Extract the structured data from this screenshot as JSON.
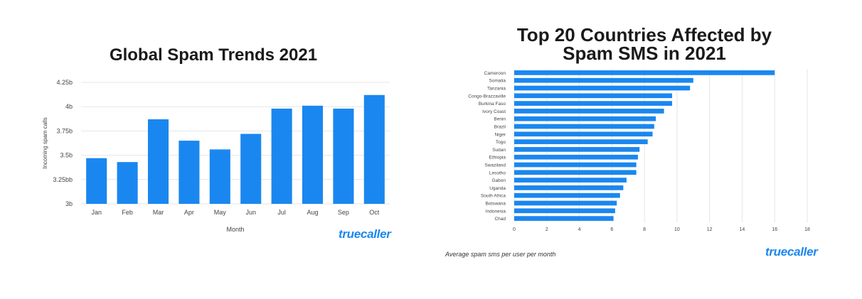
{
  "colors": {
    "bar": "#1a87f0",
    "grid": "#e6e6e6",
    "brand": "#1a87f0",
    "title": "#1a1a1a"
  },
  "left_chart": {
    "title": "Global Spam Trends 2021",
    "brand": "truecaller"
  },
  "right_chart": {
    "title_line1": "Top 20 Countries Affected by",
    "title_line2": "Spam SMS in 2021",
    "note": "Average spam sms per user per month",
    "brand": "truecaller"
  },
  "chart_data": [
    {
      "type": "bar",
      "title": "Global Spam Trends 2021",
      "xlabel": "Month",
      "ylabel": "Incoming spam calls",
      "categories": [
        "Jan",
        "Feb",
        "Mar",
        "Apr",
        "May",
        "Jun",
        "Jul",
        "Aug",
        "Sep",
        "Oct"
      ],
      "values": [
        3.47,
        3.43,
        3.87,
        3.65,
        3.56,
        3.72,
        3.98,
        4.01,
        3.98,
        4.12
      ],
      "value_unit": "billion",
      "ylim": [
        3,
        4.25
      ],
      "yticks": [
        3,
        3.25,
        3.5,
        3.75,
        4,
        4.25
      ],
      "ytick_labels": [
        "3b",
        "3.25bb",
        "3.5b",
        "3.75b",
        "4b",
        "4.25b"
      ],
      "grid": true
    },
    {
      "type": "bar",
      "orientation": "horizontal",
      "title": "Top 20 Countries Affected by Spam SMS in 2021",
      "xlabel": "Average spam sms per user per month",
      "categories": [
        "Cameroon",
        "Somalia",
        "Tanzania",
        "Congo-Brazzaville",
        "Burkina Faso",
        "Ivory Coast",
        "Benin",
        "Brazil",
        "Niger",
        "Togo",
        "Sudan",
        "Ethiopia",
        "Swaziland",
        "Lesotho",
        "Gabon",
        "Uganda",
        "South Africa",
        "Botswana",
        "Indonesia",
        "Chad"
      ],
      "values": [
        16.0,
        11.0,
        10.8,
        9.7,
        9.7,
        9.2,
        8.7,
        8.6,
        8.5,
        8.2,
        7.7,
        7.6,
        7.5,
        7.5,
        6.9,
        6.7,
        6.5,
        6.3,
        6.2,
        6.1
      ],
      "xlim": [
        0,
        18
      ],
      "xticks": [
        0,
        2,
        4,
        6,
        8,
        10,
        12,
        14,
        16,
        18
      ],
      "grid": true
    }
  ]
}
